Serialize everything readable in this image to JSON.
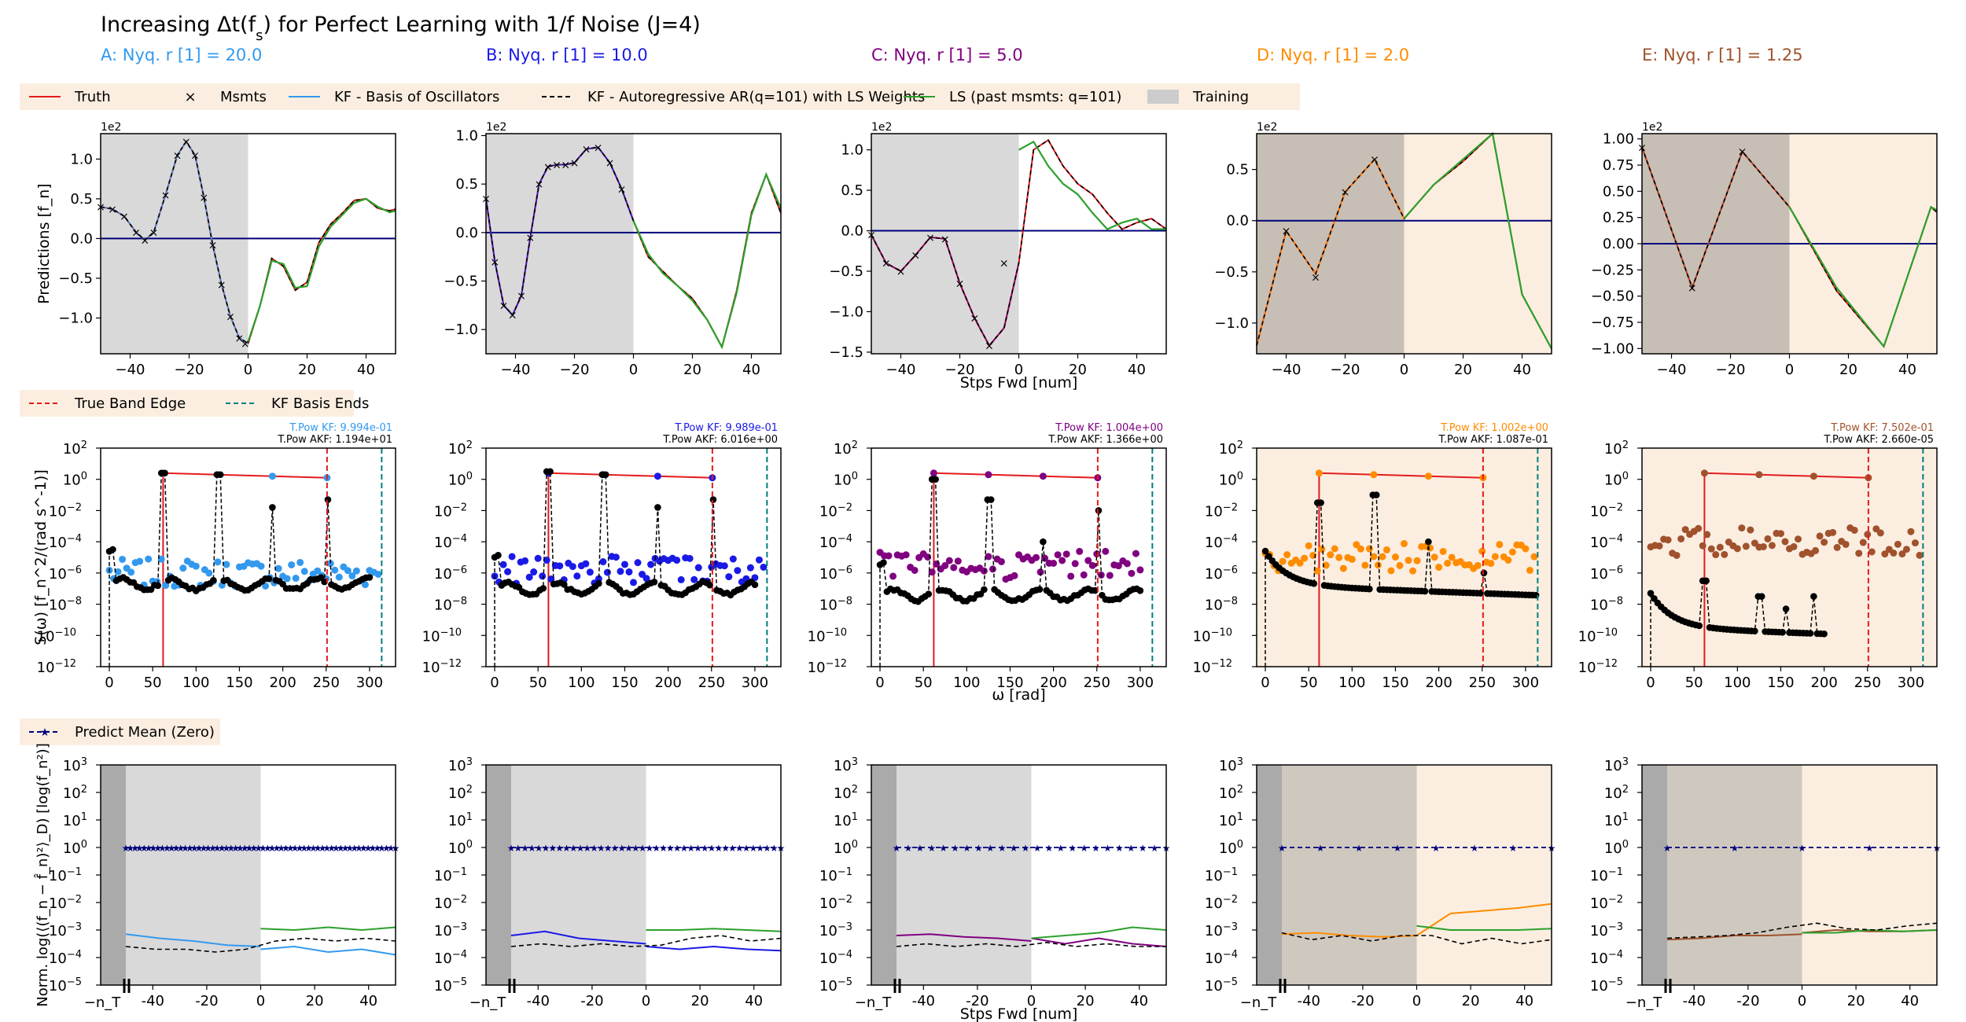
{
  "figure": {
    "title": "Increasing Δt(f",
    "title_sub": "s",
    "title_tail": ") for Perfect Learning with 1/f Noise (J=4)"
  },
  "columns": [
    {
      "label": "A: Nyq. r [1] = 20.0",
      "color": "#3399ee",
      "tpow_kf": "T.Pow KF: 9.994e-01",
      "tpow_akf": "T.Pow AKF: 1.194e+01",
      "training_bg": false
    },
    {
      "label": "B: Nyq. r [1] = 10.0",
      "color": "#1a1ae6",
      "tpow_kf": "T.Pow KF: 9.989e-01",
      "tpow_akf": "T.Pow AKF: 6.016e+00",
      "training_bg": false
    },
    {
      "label": "C: Nyq. r [1] = 5.0",
      "color": "#800080",
      "tpow_kf": "T.Pow KF: 1.004e+00",
      "tpow_akf": "T.Pow AKF: 1.366e+00",
      "training_bg": false
    },
    {
      "label": "D: Nyq. r [1] = 2.0",
      "color": "#ff8c00",
      "tpow_kf": "T.Pow KF: 1.002e+00",
      "tpow_akf": "T.Pow AKF: 1.087e-01",
      "training_bg": true
    },
    {
      "label": "E: Nyq. r [1] = 1.25",
      "color": "#a0522d",
      "tpow_kf": "T.Pow KF: 7.502e-01",
      "tpow_akf": "T.Pow AKF: 2.660e-05",
      "training_bg": true
    }
  ],
  "legends": {
    "row1": [
      {
        "label": "Truth",
        "kind": "line",
        "color": "#e41a1c"
      },
      {
        "label": "Msmts",
        "kind": "cross",
        "color": "#000000"
      },
      {
        "label": "KF - Basis of Oscillators",
        "kind": "line",
        "color": "#3399ee"
      },
      {
        "label": "KF - Autoregressive AR(q=101) with LS Weights",
        "kind": "dash",
        "color": "#000000"
      },
      {
        "label": "LS (past msmts: q=101)",
        "kind": "line",
        "color": "#2ca02c"
      },
      {
        "label": "Training",
        "kind": "patch",
        "color": "#cccccc"
      }
    ],
    "row2": [
      {
        "label": "True Band Edge",
        "kind": "dash",
        "color": "#e41a1c"
      },
      {
        "label": "KF Basis Ends",
        "kind": "dash",
        "color": "#008080"
      }
    ],
    "row3": [
      {
        "label": "Predict Mean (Zero)",
        "kind": "dashstar",
        "color": "#00007a"
      }
    ]
  },
  "axes_text": {
    "row1_ylabel": "Predictions [f_n]",
    "row1_xlabel": "Stps Fwd [num]",
    "row1_multiplier": "1e2",
    "row2_ylabel": "S(ω) [f_n^2/(rad s^-1)]",
    "row2_xlabel": "ω [rad]",
    "row3_ylabel": "Norm. log(⟨(f_n − f̂_n)²⟩_D) [log(f_n²)]",
    "row3_xlabel": "Stps Fwd [num]",
    "row3_nT": "−n_T"
  },
  "chart_data": [
    {
      "type": "line",
      "row": "predictions",
      "xlim": [
        -50,
        50
      ],
      "xticks": [
        "-40",
        "-20",
        "0",
        "20",
        "40"
      ],
      "panels": [
        {
          "ylim": [
            -1.45,
            1.32
          ],
          "yticks": [
            -1.0,
            -0.5,
            0.0,
            0.5,
            1.0
          ],
          "ytick_labels": [
            "−1.0",
            "−0.5",
            "0.0",
            "0.5",
            "1.0"
          ],
          "training_x": [
            -50,
            0
          ],
          "truth_x": [
            -50,
            -46,
            -42,
            -38,
            -35,
            -32,
            -28,
            -24,
            -21,
            -18,
            -15,
            -12,
            -9,
            -6,
            -3,
            0,
            4,
            8,
            12,
            16,
            20,
            24,
            28,
            32,
            36,
            40,
            44,
            48,
            50
          ],
          "truth_y": [
            0.4,
            0.37,
            0.28,
            0.08,
            -0.02,
            0.08,
            0.55,
            1.05,
            1.22,
            1.05,
            0.52,
            -0.08,
            -0.58,
            -0.98,
            -1.25,
            -1.32,
            -0.85,
            -0.25,
            -0.35,
            -0.65,
            -0.55,
            -0.05,
            0.18,
            0.32,
            0.48,
            0.5,
            0.38,
            0.35,
            0.37
          ],
          "ls_x": [
            0,
            4,
            8,
            12,
            16,
            20,
            24,
            28,
            32,
            36,
            40,
            44,
            48,
            50
          ],
          "ls_y": [
            -1.3,
            -0.85,
            -0.28,
            -0.32,
            -0.62,
            -0.6,
            -0.1,
            0.15,
            0.3,
            0.45,
            0.5,
            0.4,
            0.33,
            0.35
          ],
          "msmt_x": [
            -50,
            -46,
            -42,
            -38,
            -35,
            -32,
            -28,
            -24,
            -21,
            -18,
            -15,
            -12,
            -9,
            -6,
            -3,
            -1
          ],
          "msmt_y": [
            0.4,
            0.37,
            0.28,
            0.08,
            -0.02,
            0.08,
            0.55,
            1.05,
            1.22,
            1.05,
            0.52,
            -0.08,
            -0.58,
            -0.98,
            -1.25,
            -1.32
          ]
        },
        {
          "ylim": [
            -1.25,
            1.02
          ],
          "yticks": [
            -1.0,
            -0.5,
            0.0,
            0.5,
            1.0
          ],
          "ytick_labels": [
            "−1.0",
            "−0.5",
            "0.0",
            "0.5",
            "1.0"
          ],
          "training_x": [
            -50,
            0
          ],
          "truth_x": [
            -50,
            -47,
            -44,
            -41,
            -38,
            -35,
            -32,
            -29,
            -26,
            -23,
            -20,
            -16,
            -12,
            -8,
            -4,
            0,
            5,
            10,
            15,
            20,
            25,
            30,
            35,
            40,
            45,
            50
          ],
          "truth_y": [
            0.35,
            -0.3,
            -0.75,
            -0.85,
            -0.65,
            -0.05,
            0.5,
            0.68,
            0.7,
            0.7,
            0.72,
            0.86,
            0.88,
            0.72,
            0.45,
            0.12,
            -0.25,
            -0.4,
            -0.55,
            -0.68,
            -0.9,
            -1.18,
            -0.6,
            0.2,
            0.6,
            0.2
          ],
          "ls_x": [
            0,
            5,
            10,
            15,
            20,
            25,
            30,
            35,
            40,
            45,
            50
          ],
          "ls_y": [
            0.12,
            -0.22,
            -0.42,
            -0.55,
            -0.7,
            -0.9,
            -1.18,
            -0.62,
            0.18,
            0.6,
            0.25
          ],
          "msmt_x": [
            -50,
            -47,
            -44,
            -41,
            -38,
            -35,
            -32,
            -29,
            -26,
            -23,
            -20,
            -16,
            -12,
            -8,
            -4
          ],
          "msmt_y": [
            0.35,
            -0.3,
            -0.75,
            -0.85,
            -0.65,
            -0.05,
            0.5,
            0.68,
            0.7,
            0.7,
            0.72,
            0.86,
            0.88,
            0.72,
            0.45
          ]
        },
        {
          "ylim": [
            -1.52,
            1.2
          ],
          "yticks": [
            -1.5,
            -1.0,
            -0.5,
            0.0,
            0.5,
            1.0
          ],
          "ytick_labels": [
            "−1.5",
            "−1.0",
            "−0.5",
            "0.0",
            "0.5",
            "1.0"
          ],
          "training_x": [
            -50,
            0
          ],
          "truth_x": [
            -50,
            -45,
            -40,
            -35,
            -30,
            -25,
            -20,
            -15,
            -10,
            -5,
            0,
            5,
            10,
            15,
            20,
            25,
            30,
            35,
            40,
            45,
            50
          ],
          "truth_y": [
            -0.05,
            -0.4,
            -0.5,
            -0.3,
            -0.08,
            -0.1,
            -0.65,
            -1.08,
            -1.42,
            -1.2,
            -0.4,
            1.0,
            1.12,
            0.8,
            0.58,
            0.45,
            0.22,
            0.02,
            0.1,
            0.15,
            0.02
          ],
          "ls_x": [
            0,
            5,
            10,
            15,
            20,
            25,
            30,
            35,
            40,
            45,
            50
          ],
          "ls_y": [
            1.0,
            1.1,
            0.8,
            0.58,
            0.45,
            0.22,
            0.02,
            0.1,
            0.15,
            0.02,
            0.02
          ],
          "msmt_x": [
            -50,
            -45,
            -40,
            -35,
            -30,
            -25,
            -20,
            -15,
            -10,
            -5
          ],
          "msmt_y": [
            -0.05,
            -0.4,
            -0.5,
            -0.3,
            -0.08,
            -0.1,
            -0.65,
            -1.08,
            -1.42,
            -0.4
          ]
        },
        {
          "ylim": [
            -1.3,
            0.85
          ],
          "yticks": [
            -1.0,
            -0.5,
            0.0,
            0.5
          ],
          "ytick_labels": [
            "−1.0",
            "−0.5",
            "0.0",
            "0.5"
          ],
          "training_x": [
            -50,
            0
          ],
          "truth_x": [
            -50,
            -40,
            -30,
            -20,
            -10,
            0,
            10,
            20,
            30,
            40,
            50
          ],
          "truth_y": [
            -1.22,
            -0.1,
            -0.52,
            0.28,
            0.6,
            0.02,
            0.35,
            0.58,
            0.85,
            -0.72,
            -1.25
          ],
          "ls_x": [
            0,
            10,
            20,
            30,
            40,
            50
          ],
          "ls_y": [
            0.02,
            0.35,
            0.6,
            0.85,
            -0.72,
            -1.25
          ],
          "msmt_x": [
            -40,
            -30,
            -20,
            -10
          ],
          "msmt_y": [
            -0.1,
            -0.55,
            0.28,
            0.6
          ]
        },
        {
          "ylim": [
            -1.05,
            1.05
          ],
          "yticks": [
            -1.0,
            -0.75,
            -0.5,
            -0.25,
            0.0,
            0.25,
            0.5,
            0.75,
            1.0
          ],
          "ytick_labels": [
            "−1.00",
            "−0.75",
            "−0.50",
            "−0.25",
            "0.00",
            "0.25",
            "0.50",
            "0.75",
            "1.00"
          ],
          "training_x": [
            -50,
            0
          ],
          "truth_x": [
            -50,
            -33,
            -16,
            0,
            16,
            32,
            48,
            50
          ],
          "truth_y": [
            0.92,
            -0.42,
            0.88,
            0.35,
            -0.45,
            -0.98,
            0.35,
            0.3
          ],
          "ls_x": [
            0,
            16,
            32,
            48,
            50
          ],
          "ls_y": [
            0.35,
            -0.42,
            -0.98,
            0.35,
            0.32
          ],
          "msmt_x": [
            -50,
            -33,
            -16
          ],
          "msmt_y": [
            0.92,
            -0.42,
            0.88
          ]
        }
      ]
    },
    {
      "type": "scatter",
      "row": "spectrum",
      "ylog": true,
      "ylim_exp": [
        -12,
        2
      ],
      "xlim": [
        -10,
        330
      ],
      "xticks": [
        0,
        50,
        100,
        150,
        200,
        250,
        300
      ],
      "yticks_exp": [
        -12,
        -10,
        -8,
        -6,
        -4,
        -2,
        0,
        2
      ],
      "panels": [
        {
          "band_edge": 251,
          "basis_end": 314,
          "truth_x": [
            62,
            251
          ],
          "truth_y_exp": [
            0.4,
            0.1
          ],
          "kf_x_max": 314,
          "akf_x_max": 300,
          "peaks": [
            62,
            126,
            188,
            251
          ],
          "peak_exp": [
            0.4,
            0.3,
            -1.8,
            -1.3
          ],
          "kf_level_exp": -6,
          "akf_level_exp": -6.5
        },
        {
          "band_edge": 251,
          "basis_end": 314,
          "truth_x": [
            62,
            251
          ],
          "truth_y_exp": [
            0.4,
            0.1
          ],
          "kf_x_max": 314,
          "akf_x_max": 300,
          "peaks": [
            62,
            126,
            188,
            251
          ],
          "peak_exp": [
            0.5,
            0.3,
            -1.8,
            -1.3
          ],
          "kf_level_exp": -5.8,
          "akf_level_exp": -6.8
        },
        {
          "band_edge": 251,
          "basis_end": 314,
          "truth_x": [
            62,
            251
          ],
          "truth_y_exp": [
            0.4,
            0.1
          ],
          "kf_x_max": 300,
          "akf_x_max": 300,
          "peaks": [
            62,
            126,
            188,
            251
          ],
          "peak_exp": [
            0.0,
            -1.3,
            -4.0,
            -2.0
          ],
          "kf_level_exp": -5.5,
          "akf_level_exp": -7.2
        },
        {
          "band_edge": 251,
          "basis_end": 314,
          "truth_x": [
            62,
            251
          ],
          "truth_y_exp": [
            0.4,
            0.1
          ],
          "kf_x_max": 314,
          "akf_x_max": 314,
          "peaks": [
            62,
            126,
            188,
            251
          ],
          "peak_exp": [
            -1.5,
            -1.0,
            -4.0,
            -6.0
          ],
          "kf_level_exp": -5.0,
          "akf_level_exp": -6.8
        },
        {
          "band_edge": 251,
          "basis_end": 314,
          "truth_x": [
            62,
            251
          ],
          "truth_y_exp": [
            0.4,
            0.1
          ],
          "kf_x_max": 314,
          "akf_x_max": 200,
          "peaks": [
            62,
            126,
            157,
            188
          ],
          "peak_exp": [
            -6.5,
            -7.5,
            -8.3,
            -7.5
          ],
          "kf_level_exp": -4.0,
          "akf_level_exp": -9.5
        }
      ]
    },
    {
      "type": "line",
      "row": "error",
      "ylog": true,
      "ylim_exp": [
        -5,
        3
      ],
      "xlim": [
        -50,
        50
      ],
      "xticks": [
        "-40",
        "-20",
        "0",
        "20",
        "40"
      ],
      "yticks_exp": [
        -5,
        -4,
        -3,
        -2,
        -1,
        0,
        1,
        2,
        3
      ],
      "panels": [
        {
          "kf_train": [
            -3.15,
            -3.3,
            -3.4,
            -3.55,
            -3.6
          ],
          "kf_fore": [
            -3.7,
            -3.6,
            -3.8,
            -3.7,
            -3.9
          ],
          "akf": [
            -3.6,
            -3.7,
            -3.7,
            -3.8,
            -3.7,
            -3.4,
            -3.3,
            -3.4,
            -3.3,
            -3.4
          ],
          "ls": [
            -2.95,
            -3.0,
            -2.9,
            -3.0,
            -2.9
          ],
          "mean_stars": 60
        },
        {
          "kf_train": [
            -3.2,
            -3.05,
            -3.3,
            -3.4,
            -3.5
          ],
          "kf_fore": [
            -3.6,
            -3.7,
            -3.6,
            -3.7,
            -3.75
          ],
          "akf": [
            -3.6,
            -3.5,
            -3.6,
            -3.5,
            -3.6,
            -3.55,
            -3.3,
            -3.2,
            -3.4,
            -3.3
          ],
          "ls": [
            -3.0,
            -3.0,
            -2.95,
            -3.0,
            -3.05
          ],
          "mean_stars": 40
        },
        {
          "kf_train": [
            -3.2,
            -3.15,
            -3.25,
            -3.3,
            -3.4
          ],
          "kf_fore": [
            -3.3,
            -3.5,
            -3.3,
            -3.5,
            -3.6
          ],
          "akf": [
            -3.6,
            -3.5,
            -3.6,
            -3.5,
            -3.6,
            -3.45,
            -3.6,
            -3.5,
            -3.6,
            -3.6
          ],
          "ls": [
            -3.3,
            -3.2,
            -3.1,
            -2.9,
            -3.0
          ],
          "mean_stars": 24
        },
        {
          "kf_train": [
            -3.15,
            -3.1,
            -3.2,
            -3.25,
            -3.2
          ],
          "kf_fore": [
            -3.2,
            -2.4,
            -2.3,
            -2.2,
            -2.05
          ],
          "akf": [
            -3.1,
            -3.35,
            -3.2,
            -3.4,
            -3.2,
            -3.2,
            -3.5,
            -3.3,
            -3.5,
            -3.35
          ],
          "ls": [
            -2.85,
            -3.0,
            -3.0,
            -3.0,
            -2.95
          ],
          "mean_stars": 8
        },
        {
          "kf_train": [
            -3.35,
            -3.3,
            -3.2,
            -3.2,
            -3.15
          ],
          "kf_fore": [
            -3.1,
            -3.0,
            -3.05,
            -3.05,
            -3.0
          ],
          "akf": [
            -3.3,
            -3.25,
            -3.2,
            -3.1,
            -2.9,
            -2.75,
            -2.95,
            -3.0,
            -2.85,
            -2.75
          ],
          "ls": [
            -3.1,
            -3.1,
            -3.0,
            -3.05,
            -3.0
          ],
          "mean_stars": 5
        }
      ]
    }
  ]
}
